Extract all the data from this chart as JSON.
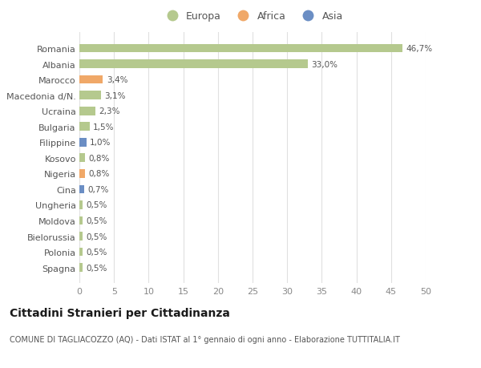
{
  "categories": [
    "Spagna",
    "Polonia",
    "Bielorussia",
    "Moldova",
    "Ungheria",
    "Cina",
    "Nigeria",
    "Kosovo",
    "Filippine",
    "Bulgaria",
    "Ucraina",
    "Macedonia d/N.",
    "Marocco",
    "Albania",
    "Romania"
  ],
  "values": [
    0.5,
    0.5,
    0.5,
    0.5,
    0.5,
    0.7,
    0.8,
    0.8,
    1.0,
    1.5,
    2.3,
    3.1,
    3.4,
    33.0,
    46.7
  ],
  "labels": [
    "0,5%",
    "0,5%",
    "0,5%",
    "0,5%",
    "0,5%",
    "0,7%",
    "0,8%",
    "0,8%",
    "1,0%",
    "1,5%",
    "2,3%",
    "3,1%",
    "3,4%",
    "33,0%",
    "46,7%"
  ],
  "continents": [
    "Europa",
    "Europa",
    "Europa",
    "Europa",
    "Europa",
    "Asia",
    "Africa",
    "Europa",
    "Asia",
    "Europa",
    "Europa",
    "Europa",
    "Africa",
    "Europa",
    "Europa"
  ],
  "continent_colors": {
    "Europa": "#b5c98e",
    "Africa": "#f0a868",
    "Asia": "#6b8ec4"
  },
  "xlim": [
    0,
    50
  ],
  "xticks": [
    0,
    5,
    10,
    15,
    20,
    25,
    30,
    35,
    40,
    45,
    50
  ],
  "title": "Cittadini Stranieri per Cittadinanza",
  "subtitle": "COMUNE DI TAGLIACOZZO (AQ) - Dati ISTAT al 1° gennaio di ogni anno - Elaborazione TUTTITALIA.IT",
  "background_color": "#ffffff",
  "grid_color": "#e0e0e0",
  "bar_height": 0.55,
  "label_fontsize": 7.5,
  "ylabel_fontsize": 8,
  "tick_fontsize": 8,
  "title_fontsize": 10,
  "subtitle_fontsize": 7
}
